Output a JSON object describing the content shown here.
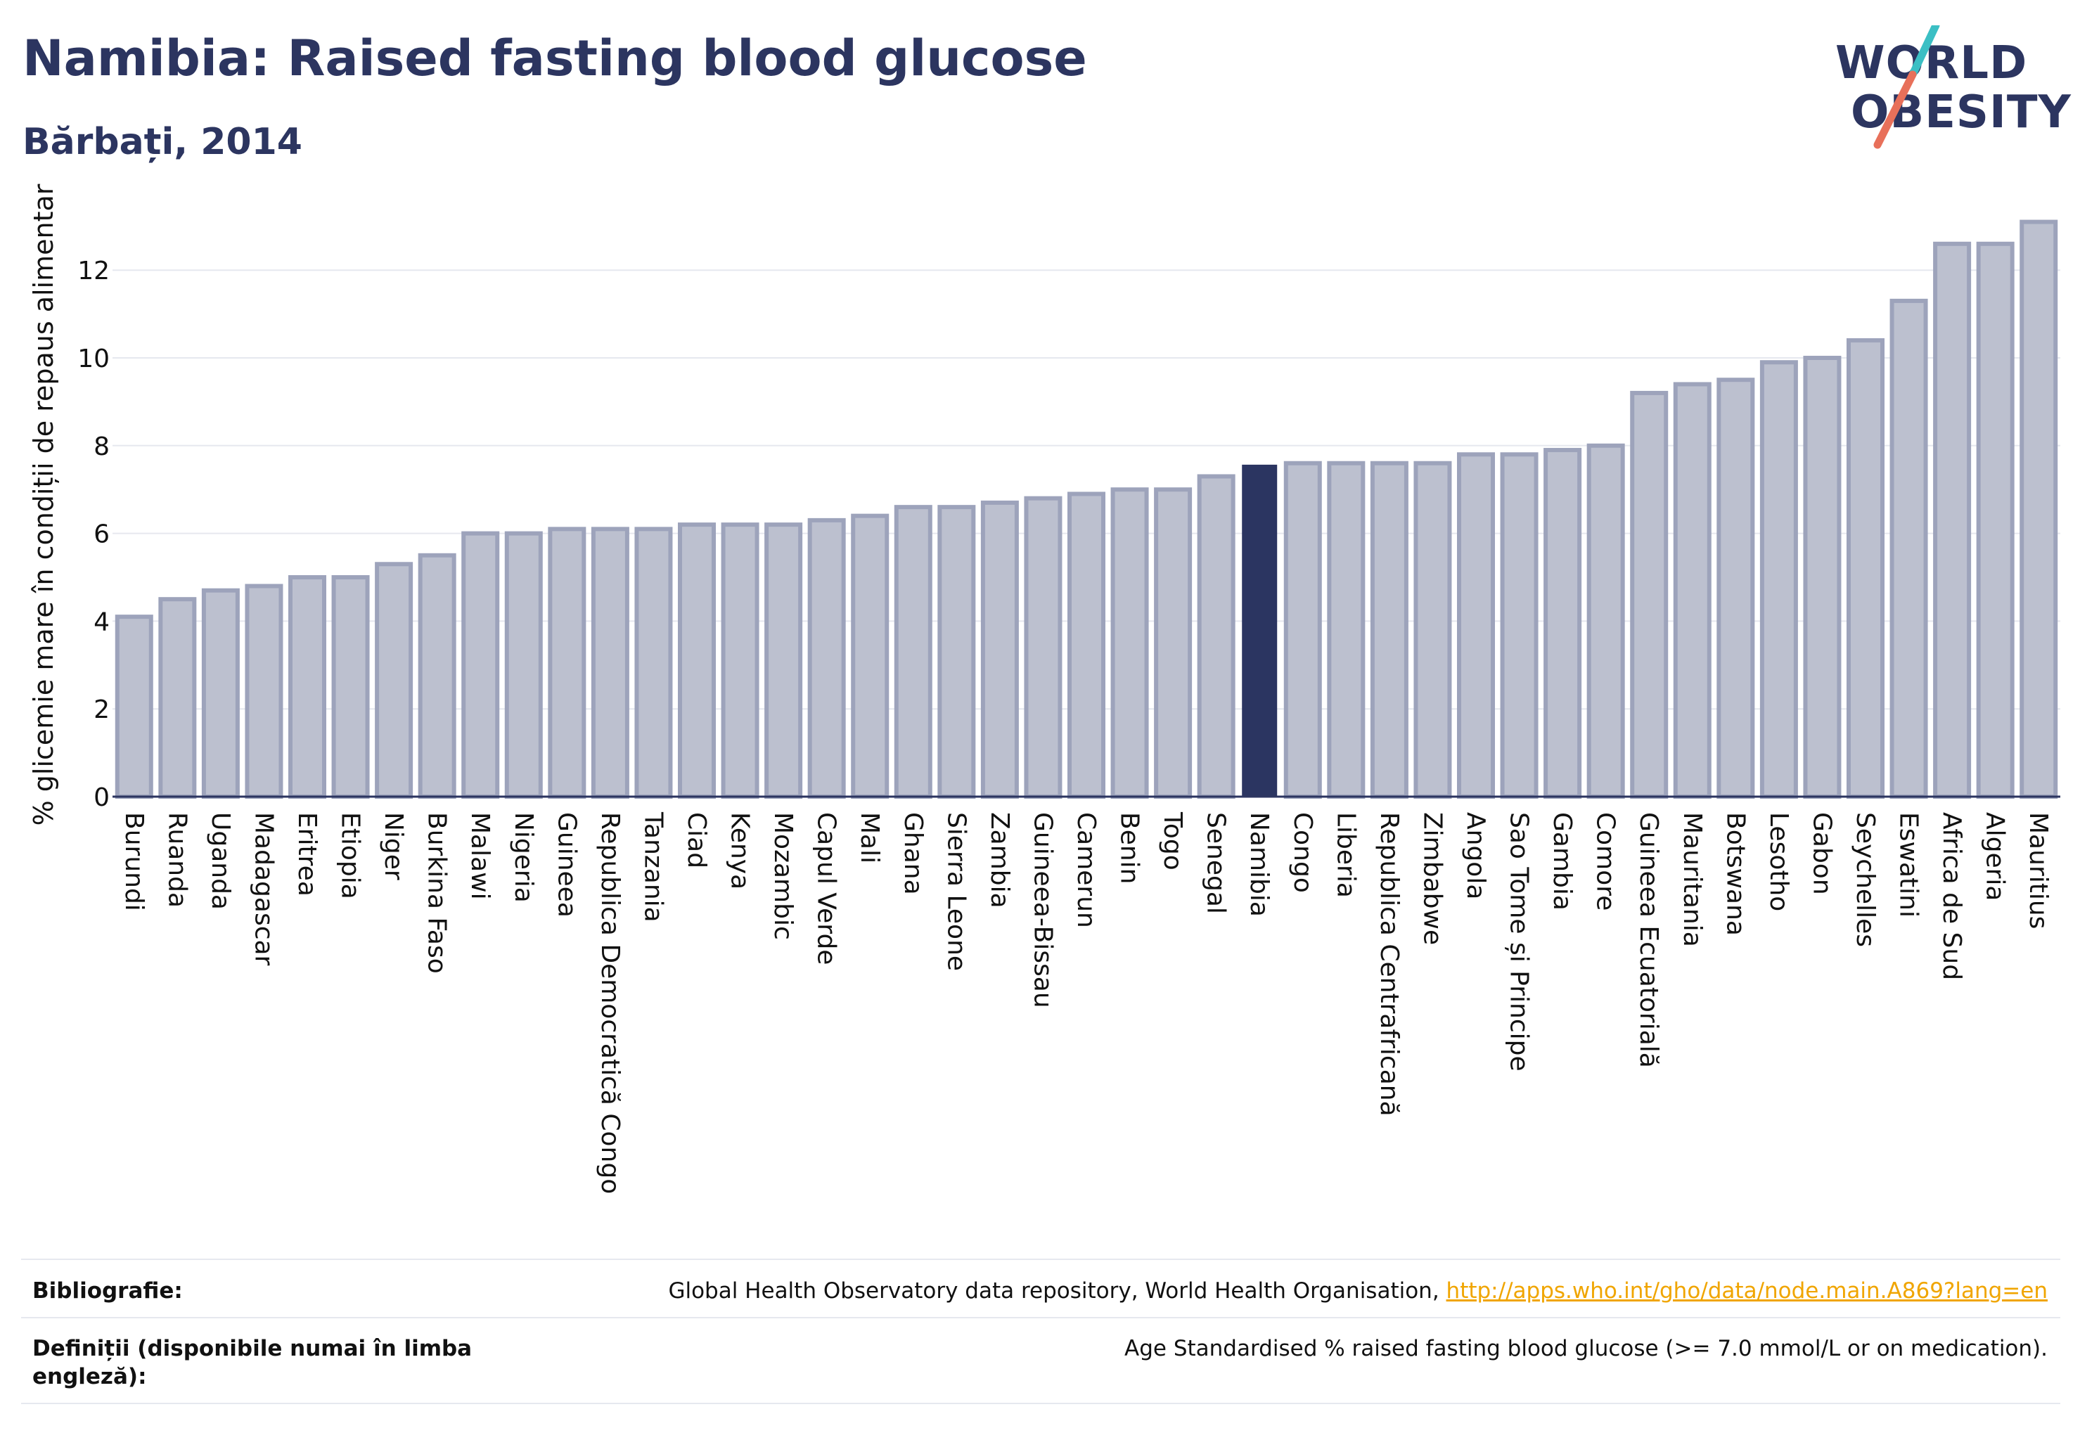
{
  "header": {
    "title": "Namibia: Raised fasting blood glucose",
    "subtitle": "Bărbați, 2014"
  },
  "logo": {
    "line1": "WORLD",
    "line2": "OBESITY",
    "colors": {
      "text": "#2c3560",
      "slash_top": "#3bbfc4",
      "slash_bottom": "#e8705a"
    }
  },
  "colors": {
    "bar_fill": "#bcc0cf",
    "bar_stroke": "#9da3bb",
    "highlight": "#2b3561",
    "grid": "#e6e8ef",
    "axis": "#2c3560"
  },
  "chart_data": {
    "type": "bar",
    "title": "Namibia: Raised fasting blood glucose",
    "subtitle": "Bărbați, 2014",
    "ylabel": "% glicemie mare în condiții de repaus alimentar",
    "xlabel": "",
    "ylim": [
      0,
      13.6
    ],
    "yticks": [
      0,
      2,
      4,
      6,
      8,
      10,
      12
    ],
    "grid": true,
    "highlight": "Namibia",
    "categories": [
      "Burundi",
      "Ruanda",
      "Uganda",
      "Madagascar",
      "Eritrea",
      "Etiopia",
      "Niger",
      "Burkina Faso",
      "Malawi",
      "Nigeria",
      "Guineea",
      "Republica Democratică Congo",
      "Tanzania",
      "Ciad",
      "Kenya",
      "Mozambic",
      "Capul Verde",
      "Mali",
      "Ghana",
      "Sierra Leone",
      "Zambia",
      "Guineea-Bissau",
      "Camerun",
      "Benin",
      "Togo",
      "Senegal",
      "Namibia",
      "Congo",
      "Liberia",
      "Republica Centrafricană",
      "Zimbabwe",
      "Angola",
      "Sao Tome și Principe",
      "Gambia",
      "Comore",
      "Guineea Ecuatorială",
      "Mauritania",
      "Botswana",
      "Lesotho",
      "Gabon",
      "Seychelles",
      "Eswatini",
      "Africa de Sud",
      "Algeria",
      "Mauritius"
    ],
    "values": [
      4.1,
      4.5,
      4.7,
      4.8,
      5.0,
      5.0,
      5.3,
      5.5,
      6.0,
      6.0,
      6.1,
      6.1,
      6.1,
      6.2,
      6.2,
      6.2,
      6.3,
      6.4,
      6.6,
      6.6,
      6.7,
      6.8,
      6.9,
      7.0,
      7.0,
      7.3,
      7.55,
      7.6,
      7.6,
      7.6,
      7.6,
      7.8,
      7.8,
      7.9,
      8.0,
      9.2,
      9.4,
      9.5,
      9.9,
      10.0,
      10.4,
      11.3,
      12.6,
      12.6,
      13.1
    ]
  },
  "footer": {
    "bibliography_label": "Bibliografie:",
    "bibliography_text": "Global Health Observatory data repository, World Health Organisation,",
    "bibliography_link": "http://apps.who.int/gho/data/node.main.A869?lang=en",
    "definitions_label": "Definiții (disponibile numai în limba engleză):",
    "definitions_text": "Age Standardised % raised fasting blood glucose (>= 7.0 mmol/L or on medication)."
  }
}
